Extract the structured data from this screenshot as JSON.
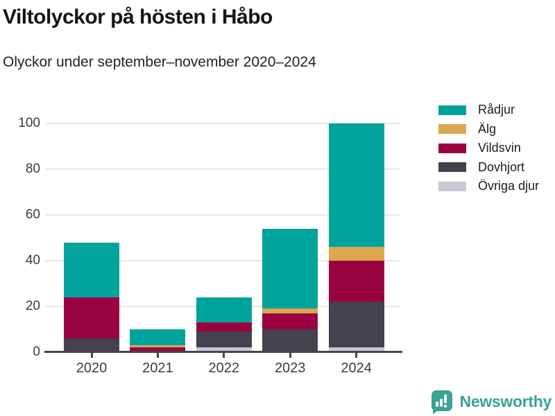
{
  "header": {
    "title": "Viltolyckor på hösten i Håbo",
    "subtitle": "Olyckor under september–november 2020–2024"
  },
  "chart_data": {
    "type": "bar",
    "stacked": true,
    "title": "Viltolyckor på hösten i Håbo",
    "subtitle": "Olyckor under september–november 2020–2024",
    "categories": [
      "2020",
      "2021",
      "2022",
      "2023",
      "2024"
    ],
    "series": [
      {
        "name": "Rådjur",
        "color": "#00a39b",
        "values": [
          24,
          7,
          11,
          35,
          54
        ]
      },
      {
        "name": "Älg",
        "color": "#d9a84f",
        "values": [
          0,
          1,
          0,
          2,
          6
        ]
      },
      {
        "name": "Vildsvin",
        "color": "#9a0140",
        "values": [
          18,
          2,
          4,
          7,
          18
        ]
      },
      {
        "name": "Dovhjort",
        "color": "#45414e",
        "values": [
          6,
          0,
          7,
          10,
          20
        ]
      },
      {
        "name": "Övriga djur",
        "color": "#c9c9d3",
        "values": [
          0,
          0,
          2,
          0,
          2
        ]
      }
    ],
    "totals": [
      48,
      10,
      24,
      54,
      100
    ],
    "xlabel": "",
    "ylabel": "",
    "ylim": [
      0,
      100
    ],
    "yticks": [
      0,
      20,
      40,
      60,
      80,
      100
    ],
    "grid": true,
    "legend_position": "right",
    "stack_bottom_to_top": [
      "Övriga djur",
      "Dovhjort",
      "Vildsvin",
      "Älg",
      "Rådjur"
    ]
  },
  "colors": {
    "grid": "#e6e6e6",
    "axis": "#47434e",
    "tick_label": "#3a3a3a",
    "brand_teal": "#3ba192"
  },
  "footer": {
    "brand": "Newsworthy"
  }
}
